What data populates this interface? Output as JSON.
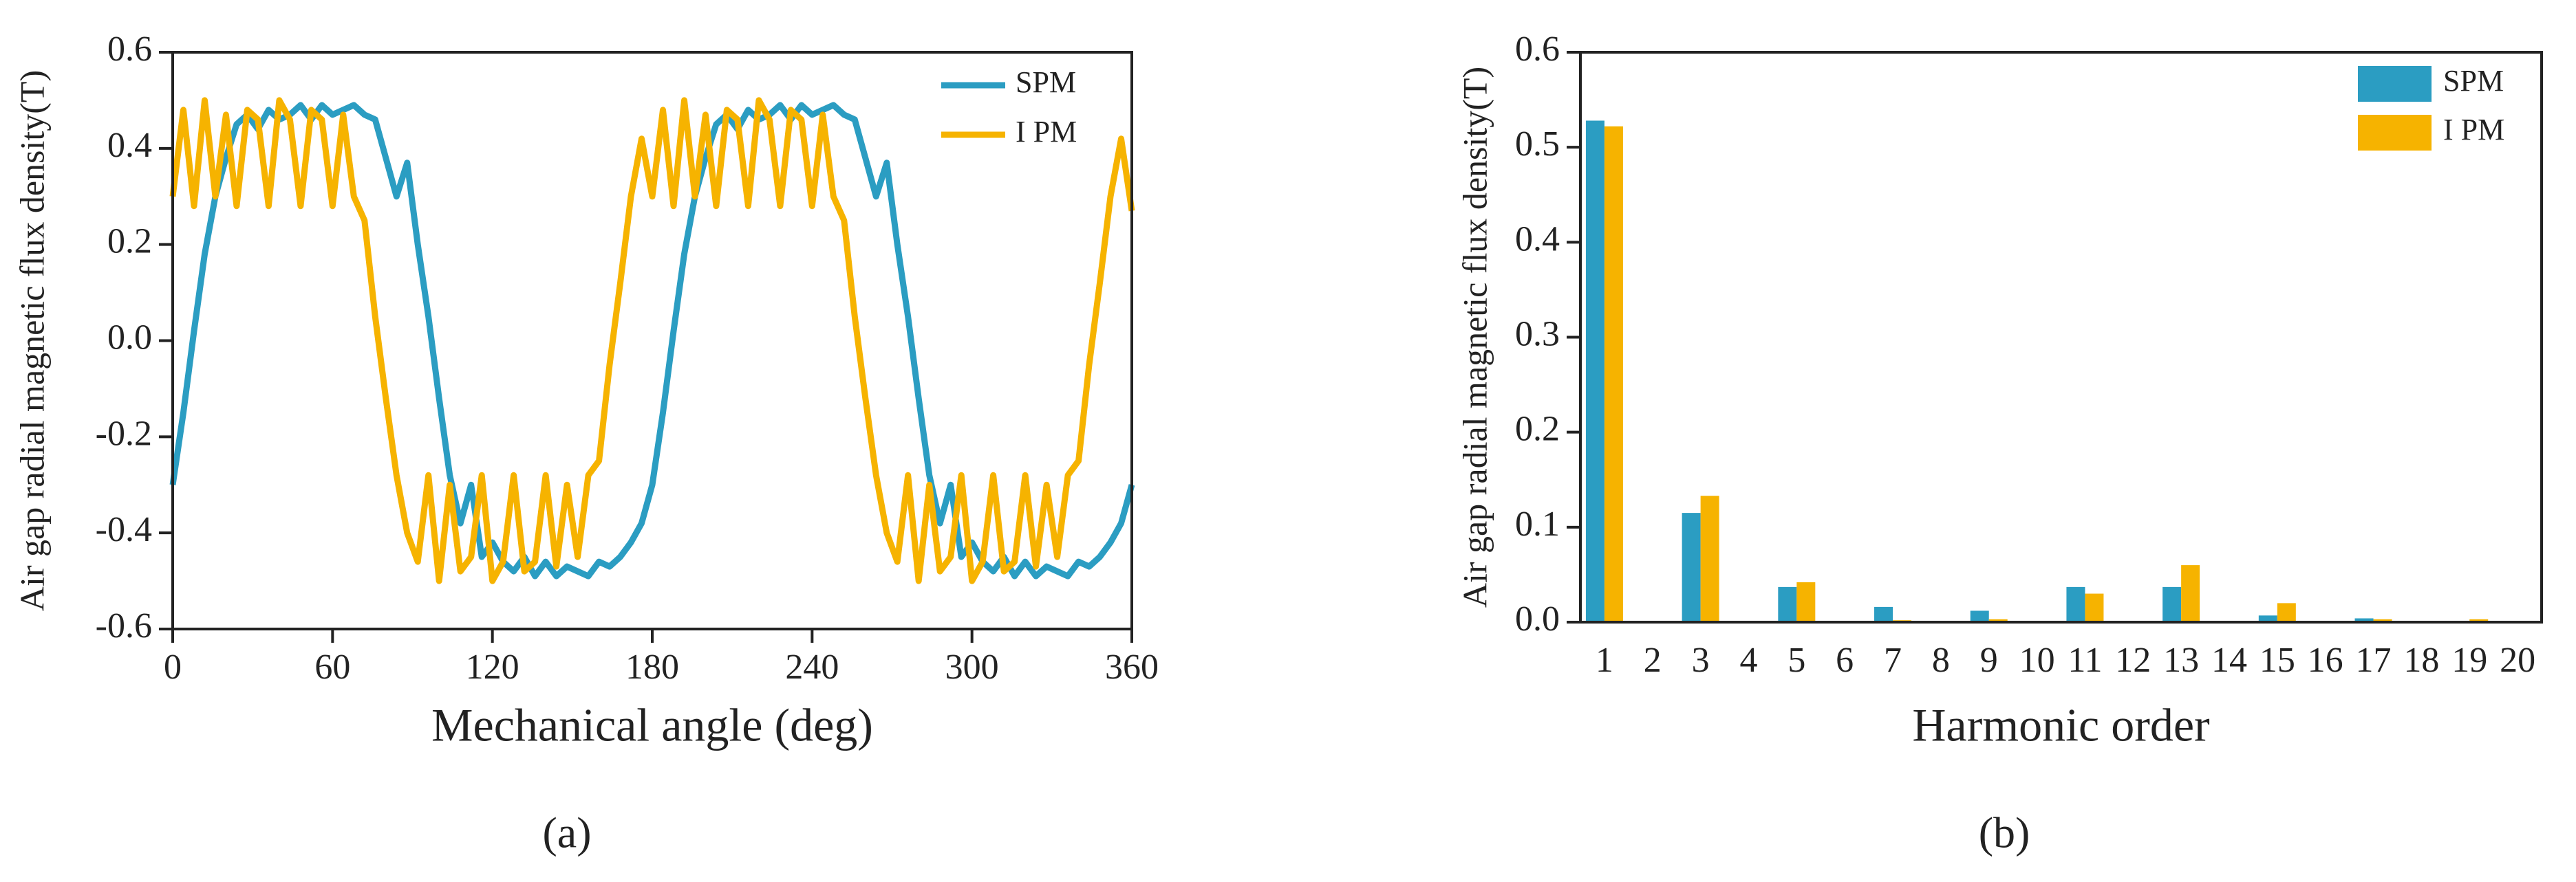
{
  "chart_data": [
    {
      "type": "line",
      "xlabel": "Mechanical angle (deg)",
      "ylabel": "Air gap radial magnetic flux density(T)",
      "caption": "(a)",
      "x": [
        0,
        4,
        8,
        12,
        16,
        20,
        24,
        28,
        32,
        36,
        40,
        44,
        48,
        52,
        56,
        60,
        64,
        68,
        72,
        76,
        80,
        84,
        88,
        92,
        96,
        100,
        104,
        108,
        112,
        116,
        120,
        124,
        128,
        132,
        136,
        140,
        144,
        148,
        152,
        156,
        160,
        164,
        168,
        172,
        176,
        180,
        184,
        188,
        192,
        196,
        200,
        204,
        208,
        212,
        216,
        220,
        224,
        228,
        232,
        236,
        240,
        244,
        248,
        252,
        256,
        260,
        264,
        268,
        272,
        276,
        280,
        284,
        288,
        292,
        296,
        300,
        304,
        308,
        312,
        316,
        320,
        324,
        328,
        332,
        336,
        340,
        344,
        348,
        352,
        356,
        360
      ],
      "series": [
        {
          "name": "SPM",
          "color": "#2b9dc2",
          "values": [
            -0.3,
            -0.15,
            0.02,
            0.18,
            0.3,
            0.38,
            0.45,
            0.47,
            0.44,
            0.48,
            0.46,
            0.47,
            0.49,
            0.46,
            0.49,
            0.47,
            0.48,
            0.49,
            0.47,
            0.46,
            0.38,
            0.3,
            0.37,
            0.2,
            0.05,
            -0.12,
            -0.28,
            -0.38,
            -0.3,
            -0.45,
            -0.42,
            -0.46,
            -0.48,
            -0.45,
            -0.49,
            -0.46,
            -0.49,
            -0.47,
            -0.48,
            -0.49,
            -0.46,
            -0.47,
            -0.45,
            -0.42,
            -0.38,
            -0.3,
            -0.15,
            0.02,
            0.18,
            0.3,
            0.38,
            0.45,
            0.47,
            0.44,
            0.48,
            0.46,
            0.47,
            0.49,
            0.46,
            0.49,
            0.47,
            0.48,
            0.49,
            0.47,
            0.46,
            0.38,
            0.3,
            0.37,
            0.2,
            0.05,
            -0.12,
            -0.28,
            -0.38,
            -0.3,
            -0.45,
            -0.42,
            -0.46,
            -0.48,
            -0.45,
            -0.49,
            -0.46,
            -0.49,
            -0.47,
            -0.48,
            -0.49,
            -0.46,
            -0.47,
            -0.45,
            -0.42,
            -0.38,
            -0.3
          ]
        },
        {
          "name": "I PM",
          "color": "#f6b300",
          "values": [
            0.3,
            0.48,
            0.28,
            0.5,
            0.3,
            0.47,
            0.28,
            0.48,
            0.46,
            0.28,
            0.5,
            0.46,
            0.28,
            0.48,
            0.46,
            0.28,
            0.47,
            0.3,
            0.25,
            0.05,
            -0.12,
            -0.28,
            -0.4,
            -0.46,
            -0.28,
            -0.5,
            -0.3,
            -0.48,
            -0.45,
            -0.28,
            -0.5,
            -0.46,
            -0.28,
            -0.48,
            -0.46,
            -0.28,
            -0.47,
            -0.3,
            -0.45,
            -0.28,
            -0.25,
            -0.05,
            0.12,
            0.3,
            0.42,
            0.3,
            0.48,
            0.28,
            0.5,
            0.3,
            0.47,
            0.28,
            0.48,
            0.46,
            0.28,
            0.5,
            0.46,
            0.28,
            0.48,
            0.46,
            0.28,
            0.47,
            0.3,
            0.25,
            0.05,
            -0.12,
            -0.28,
            -0.4,
            -0.46,
            -0.28,
            -0.5,
            -0.3,
            -0.48,
            -0.45,
            -0.28,
            -0.5,
            -0.46,
            -0.28,
            -0.48,
            -0.46,
            -0.28,
            -0.47,
            -0.3,
            -0.45,
            -0.28,
            -0.25,
            -0.05,
            0.12,
            0.3,
            0.42,
            0.27
          ]
        }
      ],
      "xlim": [
        0,
        360
      ],
      "xticks": [
        0,
        60,
        120,
        180,
        240,
        300,
        360
      ],
      "ylim": [
        -0.6,
        0.6
      ],
      "yticks": [
        -0.6,
        -0.4,
        -0.2,
        {
          "value": 0,
          "label": "0.0"
        },
        0.2,
        0.4,
        0.6
      ],
      "legend": "upper right"
    },
    {
      "type": "bar",
      "xlabel": "Harmonic order",
      "ylabel": "Air gap radial magnetic flux density(T)",
      "caption": "(b)",
      "categories": [
        "1",
        "2",
        "3",
        "4",
        "5",
        "6",
        "7",
        "8",
        "9",
        "10",
        "11",
        "12",
        "13",
        "14",
        "15",
        "16",
        "17",
        "18",
        "19",
        "20"
      ],
      "series": [
        {
          "name": "SPM",
          "color": "#2b9dc2",
          "values": [
            0.528,
            0,
            0.115,
            0,
            0.037,
            0,
            0.016,
            0,
            0.012,
            0,
            0.037,
            0,
            0.037,
            0,
            0.007,
            0,
            0.004,
            0,
            0,
            0
          ]
        },
        {
          "name": "I PM",
          "color": "#f6b300",
          "values": [
            0.522,
            0,
            0.133,
            0,
            0.042,
            0,
            0.002,
            0,
            0.003,
            0,
            0.03,
            0,
            0.06,
            0,
            0.02,
            0,
            0.003,
            0,
            0.003,
            0
          ]
        }
      ],
      "ylim": [
        0,
        0.6
      ],
      "yticks": [
        {
          "value": 0,
          "label": "0.0"
        },
        0.1,
        0.2,
        0.3,
        0.4,
        0.5,
        0.6
      ],
      "legend": "upper right"
    }
  ]
}
